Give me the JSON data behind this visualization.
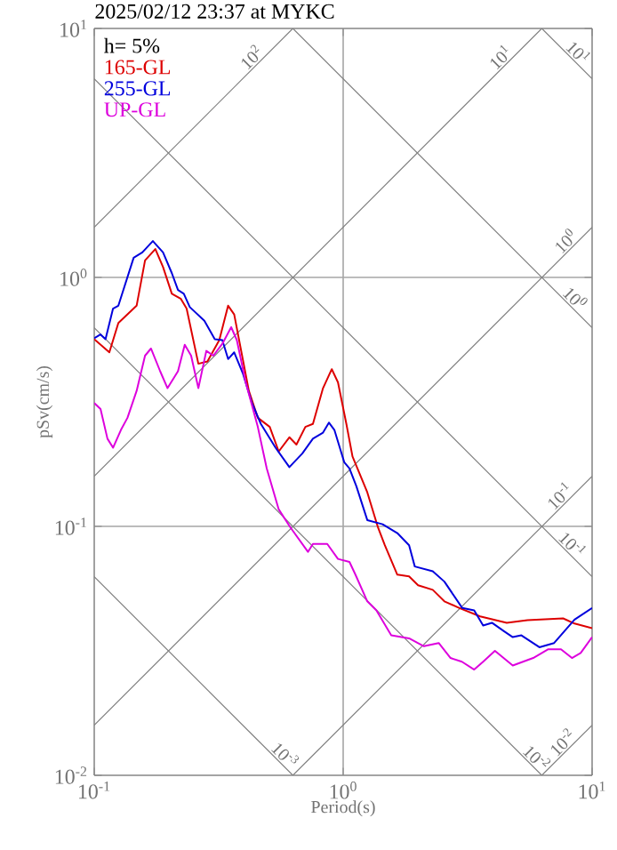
{
  "chart_data": {
    "type": "line",
    "title": "2025/02/12 23:37 at MYKC",
    "xlabel": "Period(s)",
    "ylabel": "pSv(cm/s)",
    "log": "xy",
    "xlim": [
      0.1,
      10
    ],
    "ylim": [
      0.01,
      10
    ],
    "xticks": [
      {
        "value": 0.1,
        "label": "10$^{-1}$"
      },
      {
        "value": 1,
        "label": "10$^{0}$"
      },
      {
        "value": 10,
        "label": "10$^{1}$"
      }
    ],
    "yticks": [
      {
        "value": 0.01,
        "label": "10$^{-2}$"
      },
      {
        "value": 0.1,
        "label": "10$^{-1}$"
      },
      {
        "value": 1,
        "label": "10$^{0}$"
      },
      {
        "value": 10,
        "label": "10$^{1}$"
      }
    ],
    "grid": true,
    "legend": "top left",
    "marker": "none",
    "series": [
      {
        "color": "#808080",
        "x": [
          0.1,
          0.628
        ],
        "values": [
          1.59,
          10
        ]
      },
      {
        "color": "#808080",
        "x": [
          0.1,
          6.28
        ],
        "values": [
          0.159,
          10
        ]
      },
      {
        "color": "#808080",
        "x": [
          0.1,
          10
        ],
        "values": [
          0.0159,
          1.59
        ]
      },
      {
        "color": "#808080",
        "x": [
          0.628,
          10
        ],
        "values": [
          0.01,
          0.159
        ]
      },
      {
        "color": "#808080",
        "x": [
          6.28,
          10
        ],
        "values": [
          0.01,
          0.0159
        ]
      },
      {
        "color": "#808080",
        "x": [
          6.28,
          10
        ],
        "values": [
          10,
          6.28
        ]
      },
      {
        "color": "#808080",
        "x": [
          0.628,
          10
        ],
        "values": [
          10,
          0.628
        ]
      },
      {
        "color": "#808080",
        "x": [
          0.1,
          10
        ],
        "values": [
          6.28,
          0.0628
        ]
      },
      {
        "color": "#808080",
        "x": [
          0.1,
          6.28
        ],
        "values": [
          0.628,
          0.01
        ]
      },
      {
        "color": "#808080",
        "x": [
          0.1,
          0.628
        ],
        "values": [
          0.0628,
          0.01
        ]
      },
      {
        "name": "165-GL",
        "color": "#dd0000",
        "x": [
          0.1,
          0.115,
          0.125,
          0.148,
          0.16,
          0.176,
          0.189,
          0.205,
          0.223,
          0.235,
          0.262,
          0.285,
          0.318,
          0.345,
          0.365,
          0.418,
          0.454,
          0.507,
          0.551,
          0.608,
          0.649,
          0.705,
          0.756,
          0.83,
          0.9,
          0.953,
          1.03,
          1.09,
          1.25,
          1.38,
          1.47,
          1.65,
          1.84,
          2.0,
          2.29,
          2.55,
          2.93,
          3.55,
          4.54,
          5.5,
          7.65,
          8.5,
          10
        ],
        "values": [
          0.565,
          0.5,
          0.656,
          0.77,
          1.17,
          1.3,
          1.1,
          0.86,
          0.82,
          0.75,
          0.45,
          0.46,
          0.56,
          0.77,
          0.71,
          0.35,
          0.273,
          0.251,
          0.2,
          0.228,
          0.213,
          0.251,
          0.258,
          0.359,
          0.428,
          0.379,
          0.258,
          0.191,
          0.137,
          0.099,
          0.084,
          0.064,
          0.063,
          0.058,
          0.0556,
          0.05,
          0.047,
          0.0435,
          0.041,
          0.042,
          0.0427,
          0.0407,
          0.039
        ]
      },
      {
        "name": "255-GL",
        "color": "#0000dd",
        "x": [
          0.1,
          0.106,
          0.111,
          0.119,
          0.125,
          0.144,
          0.156,
          0.172,
          0.189,
          0.205,
          0.217,
          0.229,
          0.242,
          0.277,
          0.305,
          0.327,
          0.345,
          0.365,
          0.396,
          0.43,
          0.467,
          0.535,
          0.608,
          0.685,
          0.756,
          0.83,
          0.877,
          0.922,
          1.01,
          1.06,
          1.13,
          1.25,
          1.44,
          1.65,
          1.84,
          1.94,
          2.29,
          2.55,
          3.01,
          3.36,
          3.65,
          3.96,
          4.41,
          4.8,
          5.2,
          6.14,
          7.04,
          8.5,
          10
        ],
        "values": [
          0.57,
          0.59,
          0.565,
          0.75,
          0.77,
          1.2,
          1.26,
          1.4,
          1.26,
          1.04,
          0.89,
          0.86,
          0.76,
          0.67,
          0.565,
          0.56,
          0.47,
          0.5,
          0.41,
          0.313,
          0.258,
          0.207,
          0.173,
          0.196,
          0.225,
          0.238,
          0.261,
          0.244,
          0.181,
          0.171,
          0.145,
          0.106,
          0.102,
          0.094,
          0.084,
          0.069,
          0.066,
          0.06,
          0.047,
          0.046,
          0.04,
          0.041,
          0.038,
          0.0359,
          0.0365,
          0.0327,
          0.034,
          0.0422,
          0.047
        ]
      },
      {
        "name": "UP-GL",
        "color": "#dd00dd",
        "x": [
          0.1,
          0.106,
          0.113,
          0.119,
          0.128,
          0.136,
          0.148,
          0.16,
          0.169,
          0.184,
          0.197,
          0.217,
          0.231,
          0.245,
          0.262,
          0.282,
          0.301,
          0.327,
          0.355,
          0.374,
          0.406,
          0.454,
          0.493,
          0.551,
          0.614,
          0.722,
          0.756,
          0.863,
          0.953,
          1.06,
          1.12,
          1.25,
          1.36,
          1.56,
          1.84,
          2.11,
          2.42,
          2.7,
          3.0,
          3.36,
          3.65,
          4.07,
          4.8,
          5.8,
          6.67,
          7.5,
          8.3,
          9.0,
          10
        ],
        "values": [
          0.313,
          0.296,
          0.225,
          0.207,
          0.244,
          0.273,
          0.35,
          0.485,
          0.518,
          0.42,
          0.359,
          0.42,
          0.536,
          0.485,
          0.359,
          0.507,
          0.485,
          0.541,
          0.631,
          0.56,
          0.379,
          0.251,
          0.171,
          0.117,
          0.099,
          0.079,
          0.085,
          0.085,
          0.074,
          0.072,
          0.064,
          0.05,
          0.046,
          0.0365,
          0.0355,
          0.033,
          0.034,
          0.0296,
          0.0286,
          0.0266,
          0.0286,
          0.0316,
          0.0276,
          0.0296,
          0.0321,
          0.0321,
          0.0296,
          0.031,
          0.0359
        ]
      }
    ],
    "annotations": [
      "h= 5%",
      {
        "text": "10$^{2}$",
        "x": 0.454,
        "y": 7.23
      },
      {
        "text": "10$^{1}$",
        "x": 4.54,
        "y": 7.23
      },
      {
        "text": "10$^{1}$",
        "x": 8.3,
        "y": 7.57
      },
      {
        "text": "10$^{0}$",
        "x": 8.3,
        "y": 1.32
      },
      {
        "text": "10$^{0}$",
        "x": 8.06,
        "y": 0.779
      },
      {
        "text": "10$^{-1}$",
        "x": 7.86,
        "y": 0.125
      },
      {
        "text": "10$^{-1}$",
        "x": 7.86,
        "y": 0.0799
      },
      {
        "text": "10$^{-3}$",
        "x": 0.551,
        "y": 0.0114
      },
      {
        "text": "10$^{-2}$",
        "x": 5.65,
        "y": 0.0111
      },
      {
        "text": "10$^{-2}$",
        "x": 8.06,
        "y": 0.0128
      }
    ]
  }
}
